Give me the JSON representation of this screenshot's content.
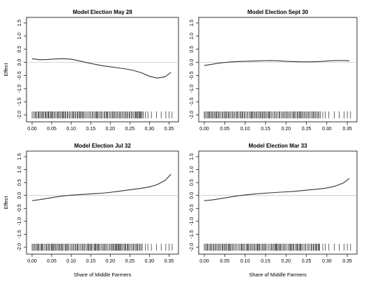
{
  "chart_data": [
    {
      "type": "line",
      "title": "Model Election May 28",
      "xlabel": "",
      "ylabel": "Effect",
      "xlim": [
        0.0,
        0.36
      ],
      "ylim": [
        -2.0,
        1.5
      ],
      "xticks": [
        "0.00",
        "0.05",
        "0.10",
        "0.15",
        "0.20",
        "0.25",
        "0.30",
        "0.35"
      ],
      "yticks": [
        "-2.0",
        "-1.5",
        "-1.0",
        "-0.5",
        "0.0",
        "0.5",
        "1.0",
        "1.5"
      ],
      "reference_line": 0,
      "x": [
        0.0,
        0.02,
        0.04,
        0.06,
        0.08,
        0.1,
        0.12,
        0.14,
        0.16,
        0.18,
        0.2,
        0.22,
        0.24,
        0.26,
        0.28,
        0.3,
        0.32,
        0.34,
        0.355
      ],
      "y": [
        0.14,
        0.1,
        0.11,
        0.13,
        0.14,
        0.12,
        0.06,
        -0.01,
        -0.07,
        -0.13,
        -0.17,
        -0.21,
        -0.25,
        -0.31,
        -0.4,
        -0.53,
        -0.6,
        -0.55,
        -0.38
      ],
      "rug_style": "dense"
    },
    {
      "type": "line",
      "title": "Model Election Sept 30",
      "xlabel": "",
      "ylabel": "",
      "xlim": [
        0.0,
        0.36
      ],
      "ylim": [
        -2.0,
        1.5
      ],
      "xticks": [
        "0.00",
        "0.05",
        "0.10",
        "0.15",
        "0.20",
        "0.25",
        "0.30",
        "0.35"
      ],
      "yticks": [
        "-2.0",
        "-1.5",
        "-1.0",
        "-0.5",
        "0.0",
        "0.5",
        "1.0",
        "1.5"
      ],
      "reference_line": 0,
      "x": [
        0.0,
        0.02,
        0.04,
        0.06,
        0.08,
        0.1,
        0.12,
        0.14,
        0.16,
        0.18,
        0.2,
        0.22,
        0.24,
        0.26,
        0.28,
        0.3,
        0.32,
        0.34,
        0.355
      ],
      "y": [
        -0.12,
        -0.07,
        -0.02,
        0.01,
        0.03,
        0.04,
        0.05,
        0.06,
        0.07,
        0.06,
        0.04,
        0.03,
        0.02,
        0.02,
        0.03,
        0.05,
        0.07,
        0.07,
        0.06
      ],
      "rug_style": "dense"
    },
    {
      "type": "line",
      "title": "Model Election Jul 32",
      "xlabel": "Share of Middle Farmers",
      "ylabel": "Effect",
      "xlim": [
        0.0,
        0.36
      ],
      "ylim": [
        -2.0,
        1.5
      ],
      "xticks": [
        "0.00",
        "0.05",
        "0.10",
        "0.15",
        "0.20",
        "0.25",
        "0.30",
        "0.35"
      ],
      "yticks": [
        "-2.0",
        "-1.5",
        "-1.0",
        "-0.5",
        "0.0",
        "0.5",
        "1.0",
        "1.5"
      ],
      "reference_line": 0,
      "x": [
        0.0,
        0.02,
        0.04,
        0.06,
        0.08,
        0.1,
        0.12,
        0.14,
        0.16,
        0.18,
        0.2,
        0.22,
        0.24,
        0.26,
        0.28,
        0.3,
        0.32,
        0.34,
        0.355
      ],
      "y": [
        -0.2,
        -0.16,
        -0.11,
        -0.06,
        -0.02,
        0.01,
        0.03,
        0.05,
        0.07,
        0.09,
        0.12,
        0.16,
        0.2,
        0.24,
        0.28,
        0.33,
        0.42,
        0.58,
        0.82
      ],
      "rug_style": "dense"
    },
    {
      "type": "line",
      "title": "Model Election Mar 33",
      "xlabel": "Share of Middle Farmers",
      "ylabel": "",
      "xlim": [
        0.0,
        0.36
      ],
      "ylim": [
        -2.0,
        1.5
      ],
      "xticks": [
        "0.00",
        "0.05",
        "0.10",
        "0.15",
        "0.20",
        "0.25",
        "0.30",
        "0.35"
      ],
      "yticks": [
        "-2.0",
        "-1.5",
        "-1.0",
        "-0.5",
        "0.0",
        "0.5",
        "1.0",
        "1.5"
      ],
      "reference_line": 0,
      "x": [
        0.0,
        0.02,
        0.04,
        0.06,
        0.08,
        0.1,
        0.12,
        0.14,
        0.16,
        0.18,
        0.2,
        0.22,
        0.24,
        0.26,
        0.28,
        0.3,
        0.32,
        0.34,
        0.355
      ],
      "y": [
        -0.2,
        -0.17,
        -0.12,
        -0.07,
        -0.02,
        0.02,
        0.05,
        0.08,
        0.1,
        0.12,
        0.14,
        0.16,
        0.19,
        0.22,
        0.25,
        0.29,
        0.36,
        0.48,
        0.66
      ],
      "rug_style": "dense"
    }
  ]
}
